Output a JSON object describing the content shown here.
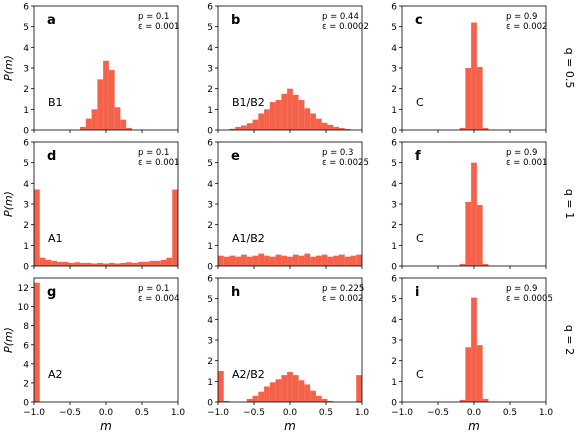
{
  "figure": {
    "xlabel": "m",
    "ylabel": "P(m)",
    "row_labels": [
      "q = 0.5",
      "q = 1",
      "q = 2"
    ],
    "bar_color": "#f4624a"
  },
  "chart_data": [
    {
      "type": "bar",
      "panel": "a",
      "row": 0,
      "col": 0,
      "param_p": "p = 0.1",
      "param_eps": "ε = 0.001",
      "phase": "B1",
      "xlim": [
        -1,
        1
      ],
      "ylim": [
        0,
        6
      ],
      "yticks": [
        0,
        1,
        2,
        3,
        4,
        5,
        6
      ],
      "xticks": [
        -1.0,
        -0.5,
        0.0,
        0.5,
        1.0
      ],
      "bin_width": 0.08,
      "bins": [
        [
          -0.32,
          0.15
        ],
        [
          -0.24,
          0.55
        ],
        [
          -0.16,
          1.0
        ],
        [
          -0.08,
          2.45
        ],
        [
          0.0,
          3.35
        ],
        [
          0.08,
          2.9
        ],
        [
          0.16,
          1.1
        ],
        [
          0.24,
          0.5
        ],
        [
          0.32,
          0.1
        ]
      ]
    },
    {
      "type": "bar",
      "panel": "b",
      "row": 0,
      "col": 1,
      "param_p": "p = 0.44",
      "param_eps": "ε = 0.0002",
      "phase": "B1/B2",
      "xlim": [
        -1,
        1
      ],
      "ylim": [
        0,
        6
      ],
      "yticks": [
        0,
        1,
        2,
        3,
        4,
        5,
        6
      ],
      "xticks": [
        -1.0,
        -0.5,
        0.0,
        0.5,
        1.0
      ],
      "bin_width": 0.08,
      "bins": [
        [
          -0.8,
          0.06
        ],
        [
          -0.72,
          0.15
        ],
        [
          -0.64,
          0.22
        ],
        [
          -0.56,
          0.33
        ],
        [
          -0.48,
          0.5
        ],
        [
          -0.4,
          0.8
        ],
        [
          -0.32,
          1.0
        ],
        [
          -0.24,
          1.35
        ],
        [
          -0.16,
          1.45
        ],
        [
          -0.08,
          1.75
        ],
        [
          0.0,
          2.0
        ],
        [
          0.08,
          1.7
        ],
        [
          0.16,
          1.45
        ],
        [
          0.24,
          1.05
        ],
        [
          0.32,
          0.8
        ],
        [
          0.4,
          0.55
        ],
        [
          0.48,
          0.35
        ],
        [
          0.56,
          0.25
        ],
        [
          0.64,
          0.15
        ],
        [
          0.72,
          0.1
        ],
        [
          0.8,
          0.05
        ]
      ]
    },
    {
      "type": "bar",
      "panel": "c",
      "row": 0,
      "col": 2,
      "param_p": "p = 0.9",
      "param_eps": "ε = 0.002",
      "phase": "C",
      "xlim": [
        -1,
        1
      ],
      "ylim": [
        0,
        6
      ],
      "yticks": [
        0,
        1,
        2,
        3,
        4,
        5,
        6
      ],
      "xticks": [
        -1.0,
        -0.5,
        0.0,
        0.5,
        1.0
      ],
      "bin_width": 0.08,
      "bins": [
        [
          -0.16,
          0.1
        ],
        [
          -0.08,
          3.0
        ],
        [
          0.0,
          5.2
        ],
        [
          0.08,
          3.05
        ],
        [
          0.16,
          0.1
        ]
      ]
    },
    {
      "type": "bar",
      "panel": "d",
      "row": 1,
      "col": 0,
      "param_p": "p = 0.1",
      "param_eps": "ε = 0.001",
      "phase": "A1",
      "xlim": [
        -1,
        1
      ],
      "ylim": [
        0,
        6
      ],
      "yticks": [
        0,
        1,
        2,
        3,
        4,
        5,
        6
      ],
      "xticks": [
        -1.0,
        -0.5,
        0.0,
        0.5,
        1.0
      ],
      "bin_width": 0.08,
      "bins": [
        [
          -0.96,
          3.7
        ],
        [
          -0.88,
          0.4
        ],
        [
          -0.8,
          0.3
        ],
        [
          -0.72,
          0.25
        ],
        [
          -0.64,
          0.2
        ],
        [
          -0.56,
          0.2
        ],
        [
          -0.48,
          0.15
        ],
        [
          -0.4,
          0.18
        ],
        [
          -0.32,
          0.15
        ],
        [
          -0.24,
          0.15
        ],
        [
          -0.16,
          0.12
        ],
        [
          -0.08,
          0.15
        ],
        [
          0.0,
          0.12
        ],
        [
          0.08,
          0.15
        ],
        [
          0.16,
          0.12
        ],
        [
          0.24,
          0.15
        ],
        [
          0.32,
          0.18
        ],
        [
          0.4,
          0.15
        ],
        [
          0.48,
          0.2
        ],
        [
          0.56,
          0.2
        ],
        [
          0.64,
          0.25
        ],
        [
          0.72,
          0.25
        ],
        [
          0.8,
          0.3
        ],
        [
          0.88,
          0.4
        ],
        [
          0.96,
          3.7
        ]
      ]
    },
    {
      "type": "bar",
      "panel": "e",
      "row": 1,
      "col": 1,
      "param_p": "p = 0.3",
      "param_eps": "ε = 0.0025",
      "phase": "A1/B2",
      "xlim": [
        -1,
        1
      ],
      "ylim": [
        0,
        6
      ],
      "yticks": [
        0,
        1,
        2,
        3,
        4,
        5,
        6
      ],
      "xticks": [
        -1.0,
        -0.5,
        0.0,
        0.5,
        1.0
      ],
      "bin_width": 0.08,
      "bins": [
        [
          -0.96,
          0.5
        ],
        [
          -0.88,
          0.45
        ],
        [
          -0.8,
          0.5
        ],
        [
          -0.72,
          0.45
        ],
        [
          -0.64,
          0.55
        ],
        [
          -0.56,
          0.45
        ],
        [
          -0.48,
          0.5
        ],
        [
          -0.4,
          0.6
        ],
        [
          -0.32,
          0.5
        ],
        [
          -0.24,
          0.45
        ],
        [
          -0.16,
          0.55
        ],
        [
          -0.08,
          0.5
        ],
        [
          0.0,
          0.45
        ],
        [
          0.08,
          0.55
        ],
        [
          0.16,
          0.5
        ],
        [
          0.24,
          0.6
        ],
        [
          0.32,
          0.45
        ],
        [
          0.4,
          0.5
        ],
        [
          0.48,
          0.55
        ],
        [
          0.56,
          0.45
        ],
        [
          0.64,
          0.5
        ],
        [
          0.72,
          0.55
        ],
        [
          0.8,
          0.45
        ],
        [
          0.88,
          0.5
        ],
        [
          0.96,
          0.55
        ]
      ]
    },
    {
      "type": "bar",
      "panel": "f",
      "row": 1,
      "col": 2,
      "param_p": "p = 0.9",
      "param_eps": "ε = 0.001",
      "phase": "C",
      "xlim": [
        -1,
        1
      ],
      "ylim": [
        0,
        6
      ],
      "yticks": [
        0,
        1,
        2,
        3,
        4,
        5,
        6
      ],
      "xticks": [
        -1.0,
        -0.5,
        0.0,
        0.5,
        1.0
      ],
      "bin_width": 0.08,
      "bins": [
        [
          -0.16,
          0.1
        ],
        [
          -0.08,
          3.1
        ],
        [
          0.0,
          5.0
        ],
        [
          0.08,
          2.95
        ],
        [
          0.16,
          0.1
        ]
      ]
    },
    {
      "type": "bar",
      "panel": "g",
      "row": 2,
      "col": 0,
      "param_p": "p = 0.1",
      "param_eps": "ε = 0.004",
      "phase": "A2",
      "xlim": [
        -1,
        1
      ],
      "ylim": [
        0,
        13
      ],
      "yticks": [
        0,
        2,
        4,
        6,
        8,
        10,
        12
      ],
      "xticks": [
        -1.0,
        -0.5,
        0.0,
        0.5,
        1.0
      ],
      "bin_width": 0.08,
      "bins": [
        [
          -0.96,
          12.5
        ]
      ]
    },
    {
      "type": "bar",
      "panel": "h",
      "row": 2,
      "col": 1,
      "param_p": "p = 0.225",
      "param_eps": "ε = 0.002",
      "phase": "A2/B2",
      "xlim": [
        -1,
        1
      ],
      "ylim": [
        0,
        6
      ],
      "yticks": [
        0,
        1,
        2,
        3,
        4,
        5,
        6
      ],
      "xticks": [
        -1.0,
        -0.5,
        0.0,
        0.5,
        1.0
      ],
      "bin_width": 0.08,
      "bins": [
        [
          -0.96,
          1.5
        ],
        [
          -0.88,
          0.05
        ],
        [
          -0.56,
          0.15
        ],
        [
          -0.48,
          0.3
        ],
        [
          -0.4,
          0.5
        ],
        [
          -0.32,
          0.75
        ],
        [
          -0.24,
          0.95
        ],
        [
          -0.16,
          1.1
        ],
        [
          -0.08,
          1.3
        ],
        [
          0.0,
          1.45
        ],
        [
          0.08,
          1.3
        ],
        [
          0.16,
          1.05
        ],
        [
          0.24,
          0.85
        ],
        [
          0.32,
          0.55
        ],
        [
          0.4,
          0.3
        ],
        [
          0.48,
          0.15
        ],
        [
          0.56,
          0.05
        ],
        [
          0.96,
          1.3
        ]
      ]
    },
    {
      "type": "bar",
      "panel": "i",
      "row": 2,
      "col": 2,
      "param_p": "p = 0.9",
      "param_eps": "ε = 0.0005",
      "phase": "C",
      "xlim": [
        -1,
        1
      ],
      "ylim": [
        0,
        6
      ],
      "yticks": [
        0,
        1,
        2,
        3,
        4,
        5,
        6
      ],
      "xticks": [
        -1.0,
        -0.5,
        0.0,
        0.5,
        1.0
      ],
      "bin_width": 0.08,
      "bins": [
        [
          -0.16,
          0.1
        ],
        [
          -0.08,
          2.65
        ],
        [
          0.0,
          5.05
        ],
        [
          0.08,
          2.75
        ],
        [
          0.16,
          0.15
        ]
      ]
    }
  ]
}
